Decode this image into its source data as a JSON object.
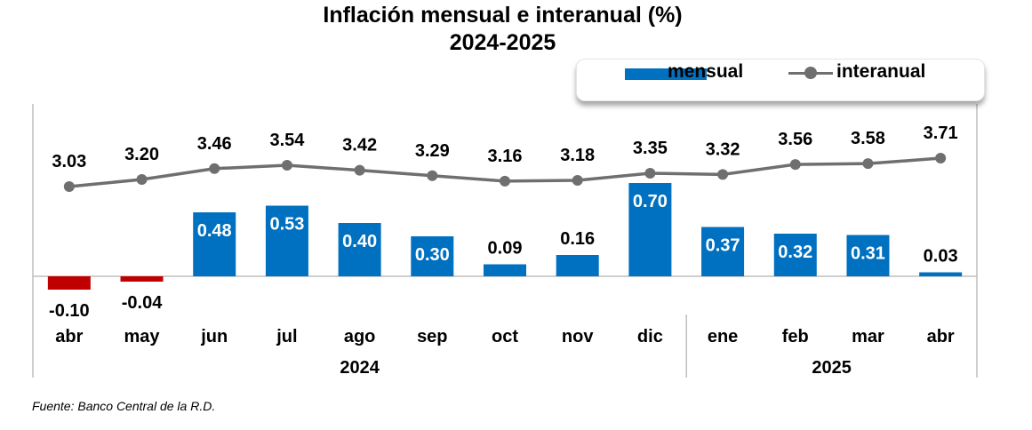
{
  "title_line1": "Inflación mensual e interanual (%)",
  "title_line2": "2024-2025",
  "source": "Fuente: Banco Central de la R.D.",
  "colors": {
    "bar_positive": "#0070c0",
    "bar_negative": "#c00000",
    "line": "#6f6f6f",
    "axis": "#bfbfbf"
  },
  "legend": {
    "position": "top-right"
  },
  "chart_data": {
    "type": "bar",
    "categories": [
      "abr",
      "may",
      "jun",
      "jul",
      "ago",
      "sep",
      "oct",
      "nov",
      "dic",
      "ene",
      "feb",
      "mar",
      "abr"
    ],
    "groups": [
      {
        "label": "2024",
        "count": 9
      },
      {
        "label": "2025",
        "count": 4
      }
    ],
    "series": [
      {
        "name": "mensual",
        "type": "bar",
        "values": [
          -0.1,
          -0.04,
          0.48,
          0.53,
          0.4,
          0.3,
          0.09,
          0.16,
          0.7,
          0.37,
          0.32,
          0.31,
          0.03
        ],
        "labels": [
          "-0.10",
          "-0.04",
          "0.48",
          "0.53",
          "0.40",
          "0.30",
          "0.09",
          "0.16",
          "0.70",
          "0.37",
          "0.32",
          "0.31",
          "0.03"
        ]
      },
      {
        "name": "interanual",
        "type": "line",
        "values": [
          3.03,
          3.2,
          3.46,
          3.54,
          3.42,
          3.29,
          3.16,
          3.18,
          3.35,
          3.32,
          3.56,
          3.58,
          3.71
        ],
        "labels": [
          "3.03",
          "3.20",
          "3.46",
          "3.54",
          "3.42",
          "3.29",
          "3.16",
          "3.18",
          "3.35",
          "3.32",
          "3.56",
          "3.58",
          "3.71"
        ]
      }
    ],
    "grid": false
  }
}
